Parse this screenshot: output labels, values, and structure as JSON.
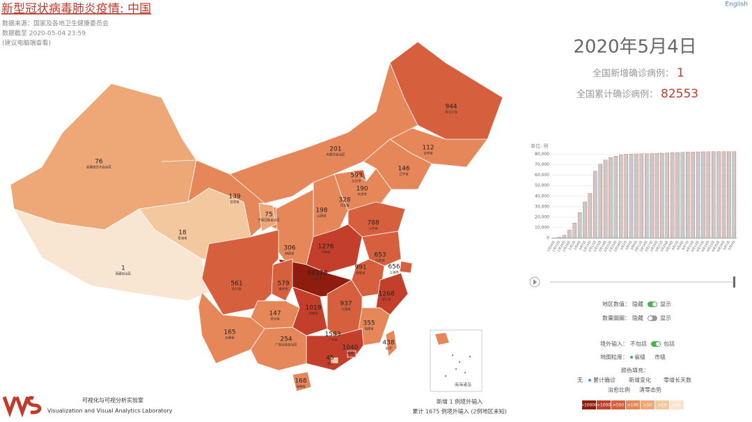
{
  "header": {
    "title": "新型冠状病毒肺炎疫情: 中国",
    "source": "数据来源：国家及各地卫生健康委员会",
    "updated": "数据截至 2020-05-04 23:59",
    "note": "(建议电脑端查看)",
    "language": "English"
  },
  "summary": {
    "date": "2020年5月4日",
    "new_label": "全国新增确诊病例：",
    "new_value": 1,
    "total_label": "全国累计确诊病例：",
    "total_value": 82553
  },
  "map": {
    "provinces": [
      {
        "name": "黑龙江省",
        "value": 944
      },
      {
        "name": "吉林省",
        "value": 112
      },
      {
        "name": "辽宁省",
        "value": 146
      },
      {
        "name": "内蒙古自治区",
        "value": 201
      },
      {
        "name": "北京市",
        "value": 593
      },
      {
        "name": "天津市",
        "value": 190
      },
      {
        "name": "河北省",
        "value": 328
      },
      {
        "name": "山西省",
        "value": 198
      },
      {
        "name": "新疆维吾尔自治区",
        "value": 76
      },
      {
        "name": "青海省",
        "value": 18
      },
      {
        "name": "西藏自治区",
        "value": 1
      },
      {
        "name": "甘肃省",
        "value": 139
      },
      {
        "name": "宁夏回族自治区",
        "value": 75
      },
      {
        "name": "陕西省",
        "value": 306
      },
      {
        "name": "河南省",
        "value": 1276
      },
      {
        "name": "山东省",
        "value": 788
      },
      {
        "name": "江苏省",
        "value": 653
      },
      {
        "name": "安徽省",
        "value": 991
      },
      {
        "name": "上海市",
        "value": 656
      },
      {
        "name": "湖北省",
        "value": 68128
      },
      {
        "name": "重庆市",
        "value": 579
      },
      {
        "name": "四川省",
        "value": 561
      },
      {
        "name": "贵州省",
        "value": 147
      },
      {
        "name": "云南省",
        "value": 165
      },
      {
        "name": "湖南省",
        "value": 1019
      },
      {
        "name": "江西省",
        "value": 937
      },
      {
        "name": "浙江省",
        "value": 1268
      },
      {
        "name": "福建省",
        "value": 355
      },
      {
        "name": "广东省",
        "value": 1583
      },
      {
        "name": "广西壮族自治区",
        "value": 254
      },
      {
        "name": "海南省",
        "value": 168
      },
      {
        "name": "香港",
        "value": 1040
      },
      {
        "name": "澳门",
        "value": 45
      },
      {
        "name": "台湾",
        "value": 438
      }
    ],
    "inset_label": "南海诸岛",
    "legend": [
      {
        "value": 10000,
        "label": ">10000",
        "color": "#8e1c0f"
      },
      {
        "value": 1000,
        "label": ">1000",
        "color": "#c33f2b"
      },
      {
        "value": 500,
        "label": ">500",
        "color": "#d6603d"
      },
      {
        "value": 100,
        "label": ">100",
        "color": "#e6875a"
      },
      {
        "value": 50,
        "label": ">50",
        "color": "#eea777"
      },
      {
        "value": 10,
        "label": ">10",
        "color": "#f4c89f"
      },
      {
        "value": 0,
        "label": ">0",
        "color": "#f9e6d2"
      }
    ]
  },
  "controls": {
    "region_values": {
      "label": "地区数值：",
      "off": "隐藏",
      "on": "显示"
    },
    "circles": {
      "label": "数量圆圈：",
      "off": "隐藏",
      "on": "显示"
    },
    "imported": {
      "label": "境外输入：",
      "off": "不包括",
      "on": "包括"
    },
    "granularity": {
      "label": "地图粒度：",
      "a": "省级",
      "b": "市级"
    },
    "fill": {
      "label": "颜色填充：",
      "options": [
        "无",
        "累计确诊",
        "新增变化",
        "零增长天数",
        "治愈比例",
        "清零态势"
      ]
    }
  },
  "footer": {
    "new_imported": "新增 1 例境外输入",
    "total_imported": "累计 1675 例境外输入 (2例地区未知)",
    "lab_cn": "可视化与可视分析实验室",
    "lab_en": "Visualization and Visual Analytics Laboratory"
  },
  "chart_data": {
    "type": "bar",
    "unit": "单位: 例",
    "color": "#c9c9c9",
    "categories": [
      "1月20日",
      "1月23日",
      "1月26日",
      "1月29日",
      "2月1日",
      "2月4日",
      "2月7日",
      "2月10日",
      "2月13日",
      "2月16日",
      "2月19日",
      "2月22日",
      "2月25日",
      "2月28日",
      "3月2日",
      "3月5日",
      "3月8日",
      "3月11日",
      "3月14日",
      "3月17日",
      "3月20日",
      "3月23日",
      "3月26日",
      "3月29日",
      "4月1日",
      "4月4日",
      "4月7日",
      "4月10日",
      "4月13日",
      "4月16日",
      "4月19日",
      "4月22日",
      "4月25日",
      "4月28日",
      "5月1日",
      "5月4日"
    ],
    "values": [
      291,
      830,
      2744,
      7711,
      14380,
      24324,
      34546,
      42638,
      63851,
      70548,
      74576,
      76846,
      78191,
      79389,
      80026,
      80270,
      80400,
      80480,
      80560,
      80650,
      80800,
      81000,
      81250,
      81500,
      81700,
      81900,
      82050,
      82150,
      82300,
      82380,
      82440,
      82480,
      82510,
      82530,
      82545,
      82553
    ],
    "ylim": [
      0,
      85000
    ],
    "yticks": [
      0,
      {
        "value": 10000,
        "label": "10,000"
      },
      {
        "value": 20000,
        "label": "20,000"
      },
      {
        "value": 30000,
        "label": "30,000"
      },
      {
        "value": 40000,
        "label": "40,000"
      },
      {
        "value": 50000,
        "label": "50,000"
      },
      {
        "value": 60000,
        "label": "60,000"
      },
      {
        "value": 70000,
        "label": "70,000"
      },
      {
        "value": 80000,
        "label": "80,000"
      }
    ]
  }
}
